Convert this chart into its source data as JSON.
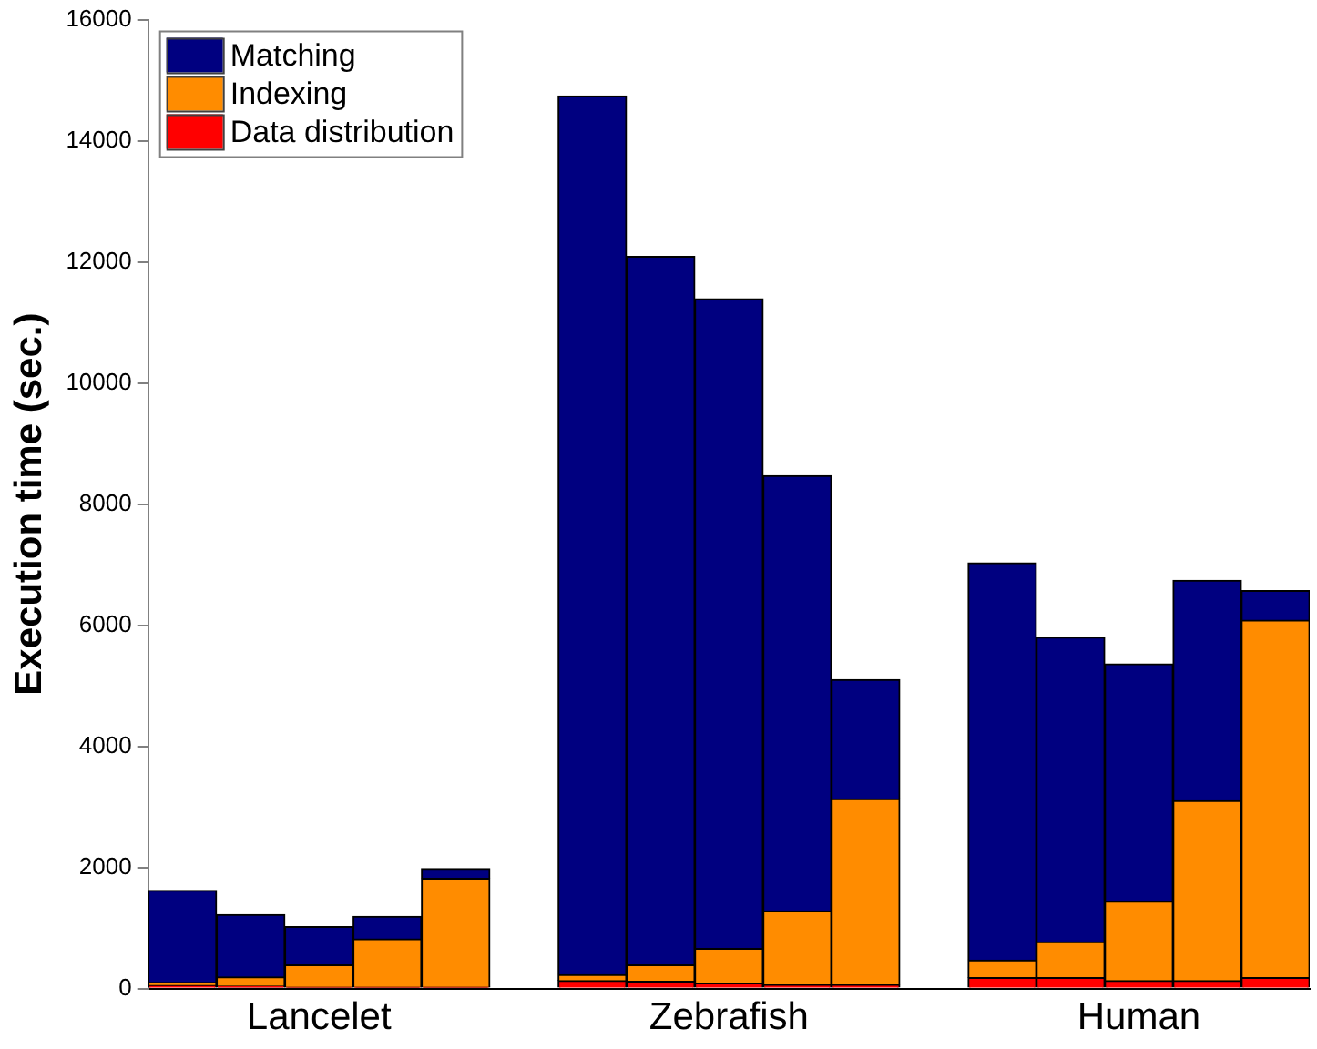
{
  "chart_data": {
    "type": "bar",
    "stacked": true,
    "ylabel": "Execution time (sec.)",
    "categories": [
      null,
      null,
      "Lancelet",
      null,
      null,
      null,
      null,
      null,
      "Zebrafish",
      null,
      null,
      null,
      null,
      null,
      "Human",
      null,
      null
    ],
    "series": [
      {
        "name": "Data distribution",
        "color": "#ff0000",
        "values": [
          50,
          40,
          20,
          20,
          20,
          null,
          130,
          120,
          90,
          60,
          60,
          null,
          180,
          180,
          130,
          130,
          180
        ]
      },
      {
        "name": "Indexing",
        "color": "#ff8c00",
        "values": [
          50,
          150,
          370,
          800,
          1800,
          null,
          100,
          270,
          570,
          1220,
          3070,
          null,
          290,
          590,
          1310,
          2970,
          5900
        ]
      },
      {
        "name": "Matching",
        "color": "#000080",
        "values": [
          1520,
          1030,
          630,
          370,
          160,
          null,
          14510,
          11700,
          10730,
          7190,
          1970,
          null,
          6560,
          5030,
          3920,
          3640,
          490
        ]
      }
    ],
    "ylim": [
      0,
      16000
    ],
    "yticks": [
      0,
      2000,
      4000,
      6000,
      8000,
      10000,
      12000,
      14000,
      16000
    ],
    "grid": false,
    "legend": "top left"
  }
}
